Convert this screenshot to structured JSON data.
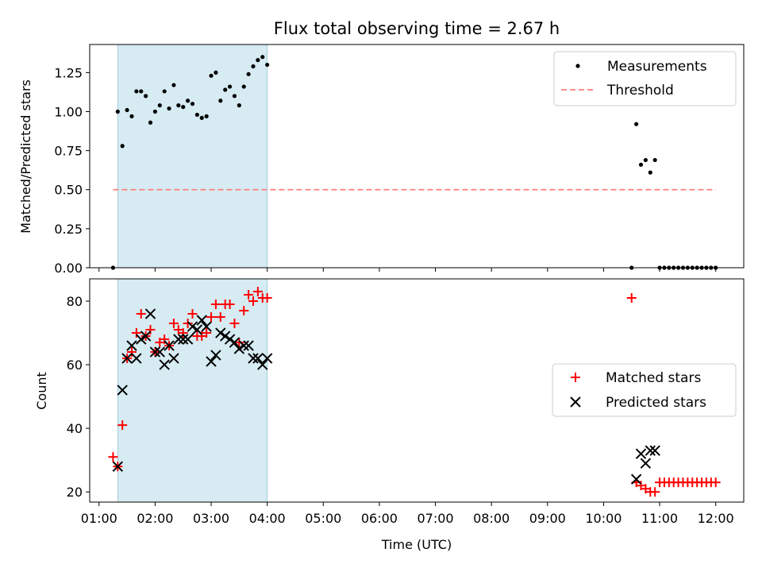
{
  "chart_data": [
    {
      "type": "scatter",
      "title": "Flux total observing time = 2.67 h",
      "xlabel": "",
      "ylabel": "Matched/Predicted stars",
      "xlim": [
        "00:50",
        "12:30"
      ],
      "ylim": [
        0,
        1.43
      ],
      "yticks": [
        "0.00",
        "0.25",
        "0.50",
        "0.75",
        "1.00",
        "1.25"
      ],
      "shaded_span": [
        "01:20",
        "04:00"
      ],
      "threshold": {
        "name": "Threshold",
        "value": 0.5,
        "x_range": [
          "01:15",
          "12:00"
        ],
        "color": "#ff7f7f"
      },
      "legend": {
        "position": "top-right",
        "entries": [
          "Measurements",
          "Threshold"
        ]
      },
      "series": [
        {
          "name": "Measurements",
          "color": "#000000",
          "marker": "dot",
          "points": [
            [
              "01:15",
              0.0
            ],
            [
              "01:20",
              1.0
            ],
            [
              "01:25",
              0.78
            ],
            [
              "01:30",
              1.01
            ],
            [
              "01:35",
              0.97
            ],
            [
              "01:40",
              1.13
            ],
            [
              "01:45",
              1.13
            ],
            [
              "01:50",
              1.1
            ],
            [
              "01:55",
              0.93
            ],
            [
              "02:00",
              1.0
            ],
            [
              "02:05",
              1.04
            ],
            [
              "02:10",
              1.13
            ],
            [
              "02:15",
              1.02
            ],
            [
              "02:20",
              1.17
            ],
            [
              "02:25",
              1.04
            ],
            [
              "02:30",
              1.03
            ],
            [
              "02:35",
              1.07
            ],
            [
              "02:40",
              1.05
            ],
            [
              "02:45",
              0.98
            ],
            [
              "02:50",
              0.96
            ],
            [
              "02:55",
              0.97
            ],
            [
              "03:00",
              1.23
            ],
            [
              "03:05",
              1.25
            ],
            [
              "03:10",
              1.07
            ],
            [
              "03:15",
              1.14
            ],
            [
              "03:20",
              1.16
            ],
            [
              "03:25",
              1.1
            ],
            [
              "03:30",
              1.04
            ],
            [
              "03:35",
              1.16
            ],
            [
              "03:40",
              1.24
            ],
            [
              "03:45",
              1.29
            ],
            [
              "03:50",
              1.33
            ],
            [
              "03:55",
              1.35
            ],
            [
              "04:00",
              1.3
            ],
            [
              "10:30",
              0.0
            ],
            [
              "10:35",
              0.92
            ],
            [
              "10:40",
              0.66
            ],
            [
              "10:45",
              0.69
            ],
            [
              "10:50",
              0.61
            ],
            [
              "10:55",
              0.69
            ],
            [
              "11:00",
              0.0
            ],
            [
              "11:05",
              0.0
            ],
            [
              "11:10",
              0.0
            ],
            [
              "11:15",
              0.0
            ],
            [
              "11:20",
              0.0
            ],
            [
              "11:25",
              0.0
            ],
            [
              "11:30",
              0.0
            ],
            [
              "11:35",
              0.0
            ],
            [
              "11:40",
              0.0
            ],
            [
              "11:45",
              0.0
            ],
            [
              "11:50",
              0.0
            ],
            [
              "11:55",
              0.0
            ],
            [
              "12:00",
              0.0
            ]
          ]
        }
      ]
    },
    {
      "type": "scatter",
      "title": "",
      "xlabel": "Time (UTC)",
      "ylabel": "Count",
      "xlim": [
        "00:50",
        "12:30"
      ],
      "ylim": [
        16.8,
        87
      ],
      "yticks": [
        "20",
        "40",
        "60",
        "80"
      ],
      "xticks": [
        "01:00",
        "02:00",
        "03:00",
        "04:00",
        "05:00",
        "06:00",
        "07:00",
        "08:00",
        "09:00",
        "10:00",
        "11:00",
        "12:00"
      ],
      "shaded_span": [
        "01:20",
        "04:00"
      ],
      "legend": {
        "position": "center-right",
        "entries": [
          "Matched stars",
          "Predicted stars"
        ]
      },
      "series": [
        {
          "name": "Matched stars",
          "color": "#ff0000",
          "marker": "plus",
          "points": [
            [
              "01:15",
              31
            ],
            [
              "01:20",
              28
            ],
            [
              "01:25",
              41
            ],
            [
              "01:30",
              62
            ],
            [
              "01:35",
              64
            ],
            [
              "01:40",
              70
            ],
            [
              "01:45",
              76
            ],
            [
              "01:50",
              69
            ],
            [
              "01:55",
              71
            ],
            [
              "02:00",
              64
            ],
            [
              "02:05",
              67
            ],
            [
              "02:10",
              68
            ],
            [
              "02:15",
              66
            ],
            [
              "02:20",
              73
            ],
            [
              "02:25",
              71
            ],
            [
              "02:30",
              70
            ],
            [
              "02:35",
              73
            ],
            [
              "02:40",
              76
            ],
            [
              "02:45",
              69
            ],
            [
              "02:50",
              69
            ],
            [
              "02:55",
              70
            ],
            [
              "03:00",
              75
            ],
            [
              "03:05",
              79
            ],
            [
              "03:10",
              75
            ],
            [
              "03:15",
              79
            ],
            [
              "03:20",
              79
            ],
            [
              "03:25",
              73
            ],
            [
              "03:30",
              67
            ],
            [
              "03:35",
              77
            ],
            [
              "03:40",
              82
            ],
            [
              "03:45",
              80
            ],
            [
              "03:50",
              83
            ],
            [
              "03:55",
              81
            ],
            [
              "04:00",
              81
            ],
            [
              "10:30",
              81
            ],
            [
              "10:35",
              23
            ],
            [
              "10:40",
              22
            ],
            [
              "10:45",
              21
            ],
            [
              "10:50",
              20
            ],
            [
              "10:55",
              20
            ],
            [
              "11:00",
              23
            ],
            [
              "11:05",
              23
            ],
            [
              "11:10",
              23
            ],
            [
              "11:15",
              23
            ],
            [
              "11:20",
              23
            ],
            [
              "11:25",
              23
            ],
            [
              "11:30",
              23
            ],
            [
              "11:35",
              23
            ],
            [
              "11:40",
              23
            ],
            [
              "11:45",
              23
            ],
            [
              "11:50",
              23
            ],
            [
              "11:55",
              23
            ],
            [
              "12:00",
              23
            ]
          ]
        },
        {
          "name": "Predicted stars",
          "color": "#000000",
          "marker": "x",
          "points": [
            [
              "01:20",
              28
            ],
            [
              "01:25",
              52
            ],
            [
              "01:30",
              62
            ],
            [
              "01:35",
              66
            ],
            [
              "01:40",
              62
            ],
            [
              "01:45",
              68
            ],
            [
              "01:50",
              69
            ],
            [
              "01:55",
              76
            ],
            [
              "02:00",
              64
            ],
            [
              "02:05",
              64
            ],
            [
              "02:10",
              60
            ],
            [
              "02:15",
              66
            ],
            [
              "02:20",
              62
            ],
            [
              "02:25",
              68
            ],
            [
              "02:30",
              68
            ],
            [
              "02:35",
              68
            ],
            [
              "02:40",
              72
            ],
            [
              "02:45",
              71
            ],
            [
              "02:50",
              74
            ],
            [
              "02:55",
              72
            ],
            [
              "03:00",
              61
            ],
            [
              "03:05",
              63
            ],
            [
              "03:10",
              70
            ],
            [
              "03:15",
              69
            ],
            [
              "03:20",
              68
            ],
            [
              "03:25",
              67
            ],
            [
              "03:30",
              65
            ],
            [
              "03:35",
              66
            ],
            [
              "03:40",
              66
            ],
            [
              "03:45",
              62
            ],
            [
              "03:50",
              62
            ],
            [
              "03:55",
              60
            ],
            [
              "04:00",
              62
            ],
            [
              "10:35",
              24
            ],
            [
              "10:40",
              32
            ],
            [
              "10:45",
              29
            ],
            [
              "10:50",
              33
            ],
            [
              "10:55",
              33
            ]
          ]
        }
      ]
    }
  ]
}
